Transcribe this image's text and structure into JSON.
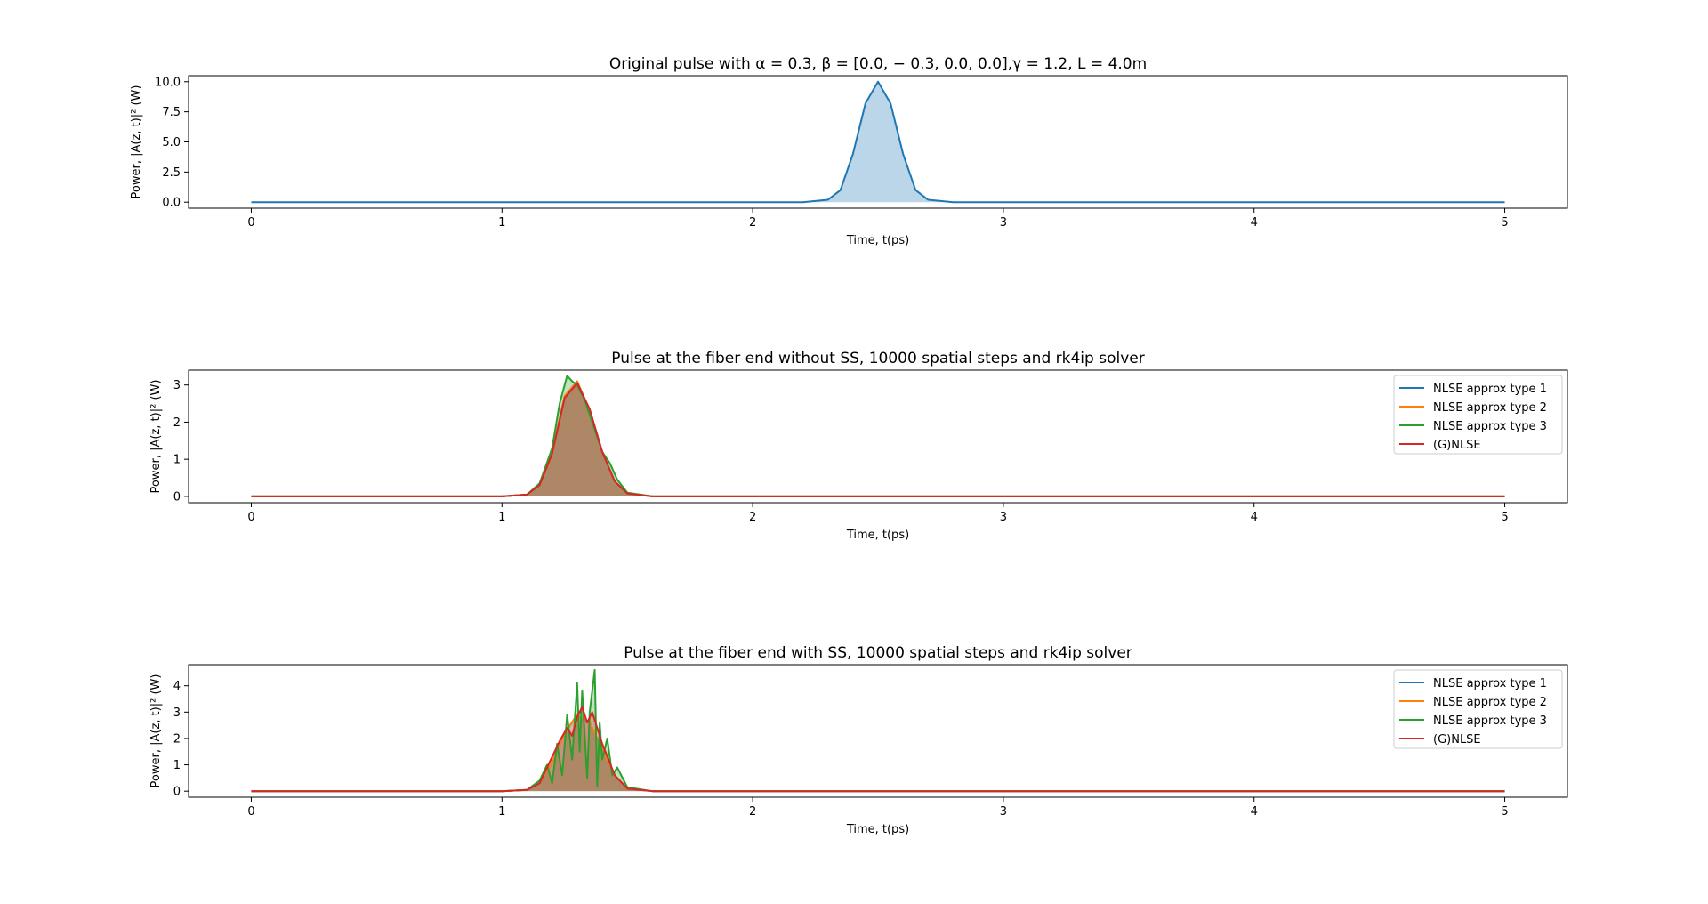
{
  "chart_data": [
    {
      "type": "line",
      "title": "Original pulse with α = 0.3, β = [0.0, − 0.3, 0.0, 0.0],γ = 1.2, L = 4.0m",
      "xlabel": "Time, t(ps)",
      "ylabel": "Power, |A(z, t)|² (W)",
      "xlim": [
        -0.25,
        5.25
      ],
      "ylim": [
        -0.5,
        10.5
      ],
      "x_ticks": [
        0,
        1,
        2,
        3,
        4,
        5
      ],
      "y_ticks": [
        0.0,
        2.5,
        5.0,
        7.5,
        10.0
      ],
      "y_tick_labels": [
        "0.0",
        "2.5",
        "5.0",
        "7.5",
        "10.0"
      ],
      "legend": false,
      "filled": true,
      "series": [
        {
          "color": "#1f77b4",
          "x": [
            0.0,
            2.0,
            2.2,
            2.3,
            2.35,
            2.4,
            2.45,
            2.5,
            2.55,
            2.6,
            2.65,
            2.7,
            2.8,
            3.0,
            5.0
          ],
          "values": [
            0.0,
            0.0,
            0.0,
            0.2,
            1.0,
            4.0,
            8.2,
            10.0,
            8.2,
            4.0,
            1.0,
            0.2,
            0.0,
            0.0,
            0.0
          ]
        }
      ]
    },
    {
      "type": "line",
      "title": "Pulse at the fiber end without SS, 10000 spatial steps and rk4ip solver",
      "xlabel": "Time, t(ps)",
      "ylabel": "Power, |A(z, t)|² (W)",
      "xlim": [
        -0.25,
        5.25
      ],
      "ylim": [
        -0.17,
        3.4
      ],
      "x_ticks": [
        0,
        1,
        2,
        3,
        4,
        5
      ],
      "y_ticks": [
        0,
        1,
        2,
        3
      ],
      "y_tick_labels": [
        "0",
        "1",
        "2",
        "3"
      ],
      "legend": "upper right",
      "filled": true,
      "series": [
        {
          "name": "NLSE approx type 1",
          "color": "#1f77b4",
          "x": [
            0,
            1.0,
            1.1,
            1.15,
            1.2,
            1.25,
            1.3,
            1.35,
            1.4,
            1.45,
            1.5,
            1.6,
            2.0,
            5.0
          ],
          "values": [
            0,
            0,
            0.05,
            0.3,
            1.2,
            2.7,
            3.1,
            2.3,
            1.2,
            0.4,
            0.08,
            0,
            0,
            0
          ]
        },
        {
          "name": "NLSE approx type 2",
          "color": "#ff7f0e",
          "x": [
            0,
            1.0,
            1.1,
            1.15,
            1.2,
            1.25,
            1.3,
            1.35,
            1.4,
            1.45,
            1.5,
            1.6,
            2.0,
            5.0
          ],
          "values": [
            0,
            0,
            0.05,
            0.3,
            1.2,
            2.7,
            3.1,
            2.3,
            1.2,
            0.4,
            0.08,
            0,
            0,
            0
          ]
        },
        {
          "name": "NLSE approx type 3",
          "color": "#2ca02c",
          "x": [
            0,
            1.0,
            1.1,
            1.15,
            1.2,
            1.23,
            1.26,
            1.28,
            1.3,
            1.33,
            1.36,
            1.4,
            1.43,
            1.46,
            1.5,
            1.6,
            2.0,
            5.0
          ],
          "values": [
            0,
            0,
            0.05,
            0.35,
            1.3,
            2.5,
            3.25,
            3.1,
            3.0,
            2.6,
            2.0,
            1.2,
            0.9,
            0.45,
            0.1,
            0,
            0,
            0
          ]
        },
        {
          "name": "(G)NLSE",
          "color": "#d62728",
          "x": [
            0,
            1.0,
            1.1,
            1.15,
            1.2,
            1.25,
            1.3,
            1.35,
            1.4,
            1.45,
            1.5,
            1.6,
            2.0,
            5.0
          ],
          "values": [
            0,
            0,
            0.05,
            0.3,
            1.15,
            2.65,
            3.05,
            2.35,
            1.2,
            0.4,
            0.08,
            0,
            0,
            0
          ]
        }
      ]
    },
    {
      "type": "line",
      "title": "Pulse at the fiber end with SS, 10000 spatial steps and rk4ip solver",
      "xlabel": "Time, t(ps)",
      "ylabel": "Power, |A(z, t)|² (W)",
      "xlim": [
        -0.25,
        5.25
      ],
      "ylim": [
        -0.23,
        4.8
      ],
      "x_ticks": [
        0,
        1,
        2,
        3,
        4,
        5
      ],
      "y_ticks": [
        0,
        1,
        2,
        3,
        4
      ],
      "y_tick_labels": [
        "0",
        "1",
        "2",
        "3",
        "4"
      ],
      "legend": "upper right",
      "filled": true,
      "series": [
        {
          "name": "NLSE approx type 1",
          "color": "#1f77b4",
          "x": [
            0,
            1.0,
            1.1,
            1.15,
            1.2,
            1.25,
            1.3,
            1.35,
            1.4,
            1.45,
            1.5,
            1.6,
            2.0,
            5.0
          ],
          "values": [
            0,
            0,
            0.05,
            0.3,
            1.1,
            2.2,
            2.9,
            2.6,
            1.6,
            0.6,
            0.1,
            0,
            0,
            0
          ]
        },
        {
          "name": "NLSE approx type 2",
          "color": "#ff7f0e",
          "x": [
            0,
            1.0,
            1.1,
            1.15,
            1.2,
            1.25,
            1.3,
            1.35,
            1.4,
            1.45,
            1.5,
            1.6,
            2.0,
            5.0
          ],
          "values": [
            0,
            0,
            0.05,
            0.3,
            1.1,
            2.2,
            2.9,
            2.6,
            1.6,
            0.6,
            0.1,
            0,
            0,
            0
          ]
        },
        {
          "name": "NLSE approx type 3",
          "color": "#2ca02c",
          "x": [
            0,
            1.0,
            1.1,
            1.15,
            1.18,
            1.2,
            1.22,
            1.24,
            1.26,
            1.28,
            1.3,
            1.31,
            1.32,
            1.34,
            1.35,
            1.37,
            1.38,
            1.39,
            1.4,
            1.42,
            1.44,
            1.46,
            1.5,
            1.6,
            2.0,
            5.0
          ],
          "values": [
            0,
            0,
            0.05,
            0.4,
            1.0,
            0.3,
            1.8,
            0.6,
            2.9,
            1.2,
            4.1,
            1.5,
            3.8,
            0.5,
            3.0,
            4.6,
            0.2,
            2.6,
            1.2,
            2.0,
            0.6,
            0.9,
            0.15,
            0,
            0,
            0
          ]
        },
        {
          "name": "(G)NLSE",
          "color": "#d62728",
          "x": [
            0,
            1.0,
            1.1,
            1.15,
            1.2,
            1.23,
            1.26,
            1.28,
            1.3,
            1.32,
            1.34,
            1.36,
            1.38,
            1.4,
            1.45,
            1.5,
            1.6,
            2.0,
            5.0
          ],
          "values": [
            0,
            0,
            0.05,
            0.3,
            1.3,
            1.9,
            2.4,
            2.1,
            2.8,
            3.2,
            2.6,
            3.0,
            2.4,
            1.8,
            0.6,
            0.1,
            0,
            0,
            0
          ]
        }
      ]
    }
  ]
}
